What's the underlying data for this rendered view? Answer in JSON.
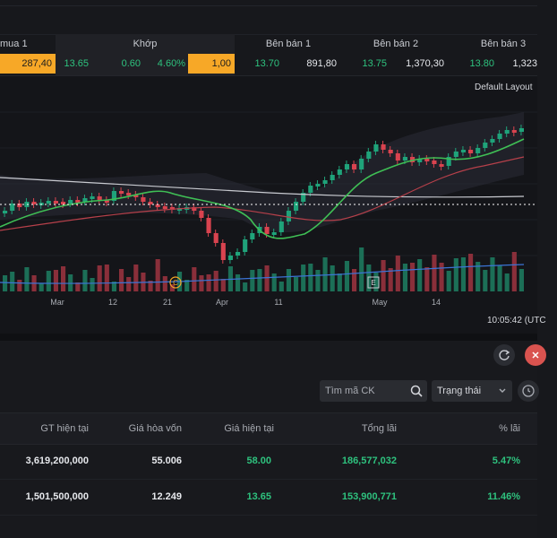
{
  "order_book": {
    "headers": {
      "best_bid_1": "mua 1",
      "match": "Khớp",
      "ask_1": "Bên bán 1",
      "ask_2": "Bên bán 2",
      "ask_3": "Bên bán 3"
    },
    "values": {
      "bid1_volume": "287,40",
      "match_price": "13.65",
      "match_change": "0.60",
      "match_pct": "4.60%",
      "match_volume": "1,00",
      "ask1_price": "13.70",
      "ask1_volume": "891,80",
      "ask2_price": "13.75",
      "ask2_volume": "1,370,30",
      "ask3_price": "13.80",
      "ask3_volume": "1,323"
    }
  },
  "chart": {
    "layout_label": "Default Layout",
    "time_labels": [
      "Mar",
      "12",
      "21",
      "Apr",
      "11",
      "May",
      "14"
    ],
    "event_markers": [
      "C",
      "E"
    ],
    "clock": "10:05:42 (UTC",
    "colors": {
      "up": "#1fa37a",
      "down": "#d9434f",
      "ma_short": "#3fbf55",
      "ma_long": "#b6404a",
      "ma_slow": "#c8cad0",
      "volume_line": "#3b74d6"
    },
    "chart_data": {
      "type": "candlestick",
      "x_labels": [
        "Mar",
        "12",
        "21",
        "Apr",
        "11",
        "May",
        "14"
      ],
      "price_level_marker": "dotted"
    }
  },
  "portfolio": {
    "search_placeholder": "Tìm mã CK",
    "status_filter": "Trạng thái",
    "columns": [
      "GT hiện tại",
      "Giá hòa vốn",
      "Giá hiện tại",
      "Tổng lãi",
      "% lãi"
    ],
    "rows": [
      {
        "current_value": "3,619,200,000",
        "breakeven": "55.006",
        "current_price": "58.00",
        "total_profit": "186,577,032",
        "profit_pct": "5.47%"
      },
      {
        "current_value": "1,501,500,000",
        "breakeven": "12.249",
        "current_price": "13.65",
        "total_profit": "153,900,771",
        "profit_pct": "11.46%"
      }
    ]
  }
}
